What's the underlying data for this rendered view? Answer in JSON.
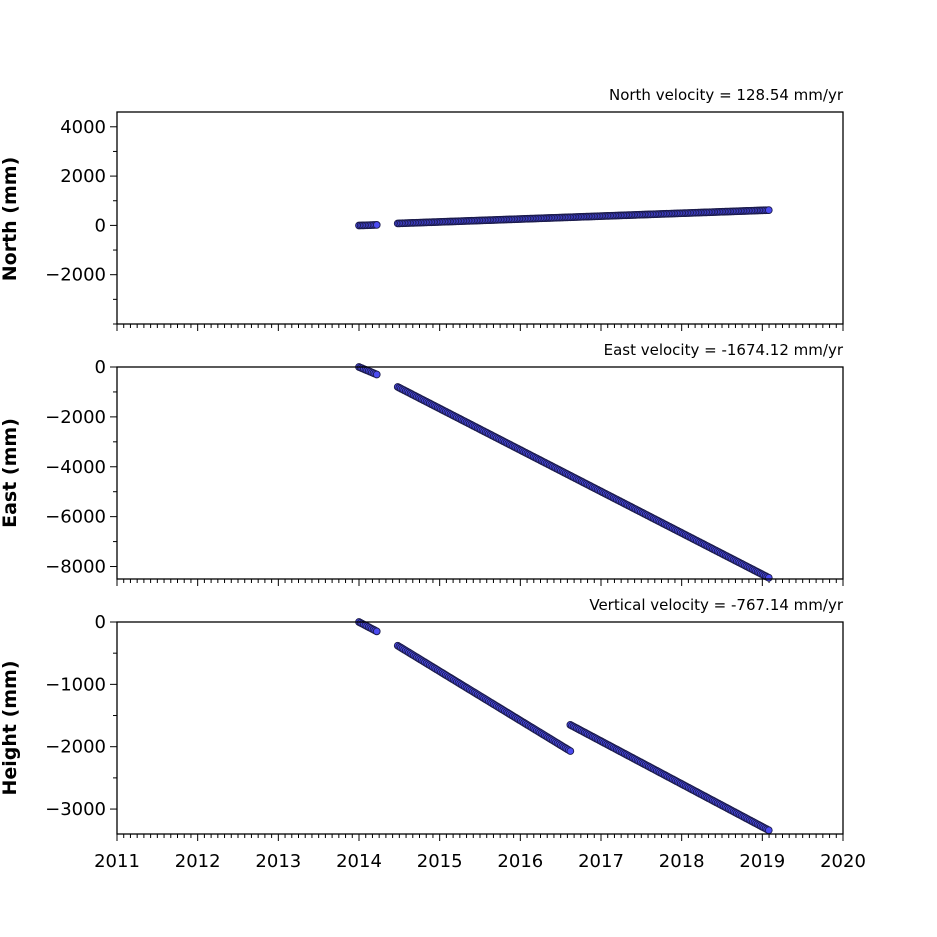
{
  "chart_data": [
    {
      "type": "scatter",
      "title": "North velocity = 128.54 mm/yr",
      "ylabel": "North (mm)",
      "xlim": [
        2011,
        2020
      ],
      "ylim": [
        -4000,
        4600
      ],
      "yticks": [
        -2000,
        0,
        2000,
        4000
      ],
      "ytick_labels": [
        "−2000",
        "0",
        "2000",
        "4000"
      ],
      "marker_color": "#4b4bf0",
      "edge_color": "#1a1a4a",
      "segments": [
        {
          "x": [
            2014.0,
            2014.22
          ],
          "y": [
            -5,
            20
          ]
        },
        {
          "x": [
            2014.48,
            2019.08
          ],
          "y": [
            80,
            620
          ]
        }
      ]
    },
    {
      "type": "scatter",
      "title": "East velocity = -1674.12 mm/yr",
      "ylabel": "East (mm)",
      "xlim": [
        2011,
        2020
      ],
      "ylim": [
        -8500,
        0
      ],
      "yticks": [
        -8000,
        -6000,
        -4000,
        -2000,
        0
      ],
      "ytick_labels": [
        "−8000",
        "−6000",
        "−4000",
        "−2000",
        "0"
      ],
      "marker_color": "#4b4bf0",
      "edge_color": "#1a1a4a",
      "segments": [
        {
          "x": [
            2014.0,
            2014.22
          ],
          "y": [
            0,
            -300
          ]
        },
        {
          "x": [
            2014.48,
            2019.08
          ],
          "y": [
            -800,
            -8450
          ]
        }
      ]
    },
    {
      "type": "scatter",
      "title": "Vertical velocity = -767.14 mm/yr",
      "ylabel": "Height (mm)",
      "xlim": [
        2011,
        2020
      ],
      "ylim": [
        -3400,
        0
      ],
      "yticks": [
        -3000,
        -2000,
        -1000,
        0
      ],
      "ytick_labels": [
        "−3000",
        "−2000",
        "−1000",
        "0"
      ],
      "marker_color": "#4b4bf0",
      "edge_color": "#1a1a4a",
      "xticks": [
        2011,
        2012,
        2013,
        2014,
        2015,
        2016,
        2017,
        2018,
        2019,
        2020
      ],
      "xtick_labels": [
        "2011",
        "2012",
        "2013",
        "2014",
        "2015",
        "2016",
        "2017",
        "2018",
        "2019",
        "2020"
      ],
      "segments": [
        {
          "x": [
            2014.0,
            2014.22
          ],
          "y": [
            0,
            -150
          ]
        },
        {
          "x": [
            2014.48,
            2016.62
          ],
          "y": [
            -380,
            -2070
          ]
        },
        {
          "x": [
            2016.62,
            2019.08
          ],
          "y": [
            -1650,
            -3340
          ]
        }
      ]
    }
  ]
}
